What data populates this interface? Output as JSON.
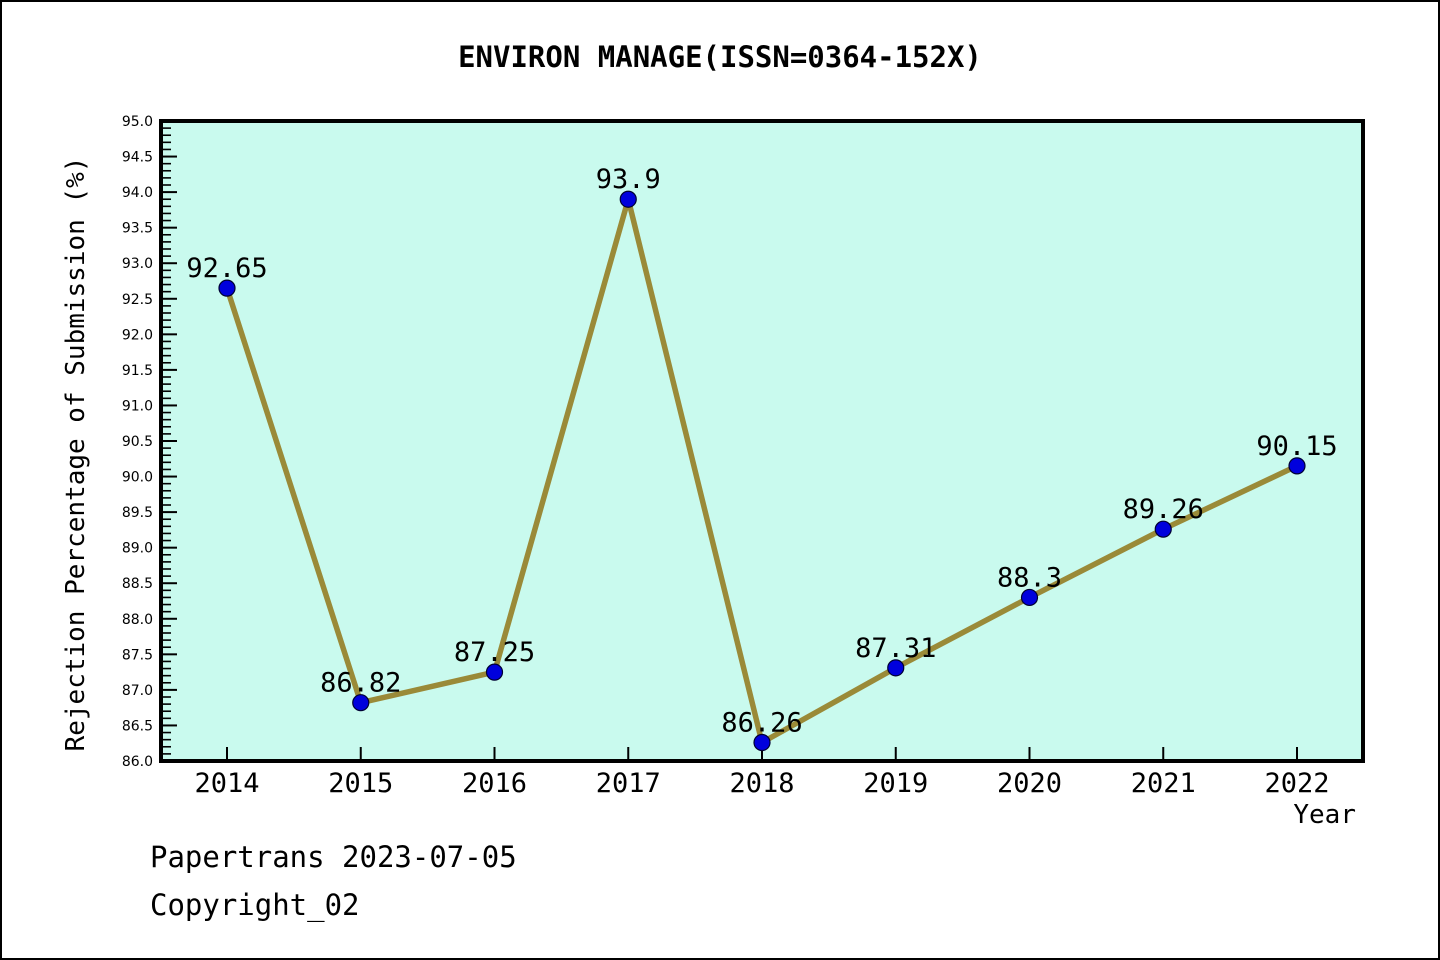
{
  "title": "ENVIRON MANAGE(ISSN=0364-152X)",
  "footer": {
    "line1": "Papertrans 2023-07-05",
    "line2": "Copyright_02"
  },
  "chart_data": {
    "type": "line",
    "title": "ENVIRON MANAGE(ISSN=0364-152X)",
    "xlabel": "Year",
    "ylabel": "Rejection Percentage of Submission (%)",
    "categories": [
      "2014",
      "2015",
      "2016",
      "2017",
      "2018",
      "2019",
      "2020",
      "2021",
      "2022"
    ],
    "values": [
      92.65,
      86.82,
      87.25,
      93.9,
      86.26,
      87.31,
      88.3,
      89.26,
      90.15
    ],
    "point_labels": [
      "92.65",
      "86.82",
      "87.25",
      "93.9",
      "86.26",
      "87.31",
      "88.3",
      "89.26",
      "90.15"
    ],
    "ylim": [
      86.0,
      95.0
    ],
    "ytick_step": 0.5,
    "ytick_minor_step": 0.1,
    "grid": false,
    "legend": null,
    "colors": {
      "line": "#9A8A38",
      "marker": "#0000DD",
      "marker_edge": "#000033",
      "plot_bg": "#C9FAEE",
      "axis": "#000000",
      "text": "#000000"
    }
  }
}
